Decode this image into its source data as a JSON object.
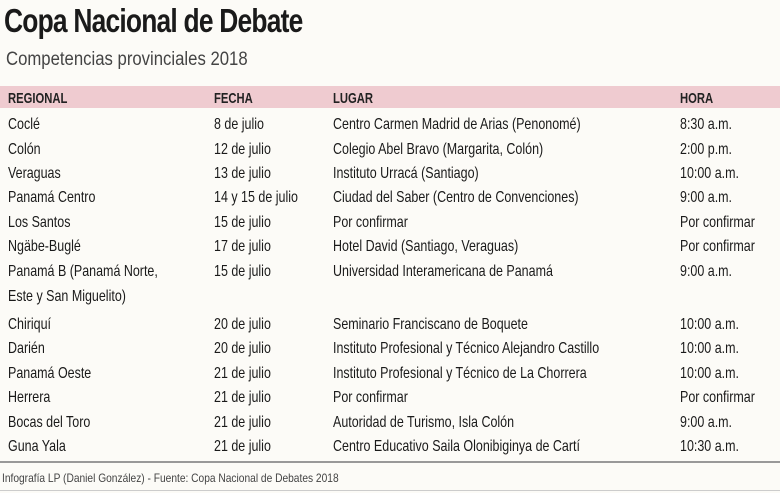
{
  "title": "Copa Nacional de Debate",
  "subtitle": "Competencias provinciales 2018",
  "colors": {
    "header_bg": "#efcbd0",
    "background": "#fcfbf7"
  },
  "table": {
    "headers": [
      "REGIONAL",
      "FECHA",
      "LUGAR",
      "HORA"
    ],
    "rows": [
      [
        "Coclé",
        "8 de julio",
        "Centro Carmen Madrid de Arias (Penonomé)",
        "8:30 a.m."
      ],
      [
        "Colón",
        "12 de julio",
        "Colegio Abel Bravo (Margarita, Colón)",
        "2:00 p.m."
      ],
      [
        "Veraguas",
        "13 de julio",
        "Instituto Urracá (Santiago)",
        "10:00 a.m."
      ],
      [
        "Panamá Centro",
        "14 y 15 de julio",
        "Ciudad del Saber (Centro de Convenciones)",
        "9:00 a.m."
      ],
      [
        "Los Santos",
        "15 de julio",
        "Por confirmar",
        "Por confirmar"
      ],
      [
        "Ngäbe-Buglé",
        "17 de julio",
        "Hotel David (Santiago, Veraguas)",
        "Por confirmar"
      ],
      [
        "Panamá B (Panamá Norte,",
        "15 de julio",
        "Universidad Interamericana de Panamá",
        "9:00 a.m."
      ],
      [
        "Este y San Miguelito)",
        "",
        "",
        ""
      ],
      [
        "Chiriquí",
        "20 de julio",
        "Seminario Franciscano de Boquete",
        "10:00 a.m."
      ],
      [
        "Darién",
        "20 de julio",
        "Instituto Profesional y Técnico Alejandro Castillo",
        "10:00 a.m."
      ],
      [
        "Panamá Oeste",
        "21 de julio",
        "Instituto Profesional y Técnico de La Chorrera",
        "10:00 a.m."
      ],
      [
        "Herrera",
        "21 de julio",
        "Por confirmar",
        "Por confirmar"
      ],
      [
        "Bocas del Toro",
        "21 de julio",
        "Autoridad de Turismo, Isla Colón",
        "9:00 a.m."
      ],
      [
        "Guna Yala",
        "21 de julio",
        "Centro Educativo Saila Olonibiginya de Cartí",
        "10:30 a.m."
      ]
    ]
  },
  "footer": "Infografía LP (Daniel González) - Fuente: Copa Nacional de Debates 2018"
}
